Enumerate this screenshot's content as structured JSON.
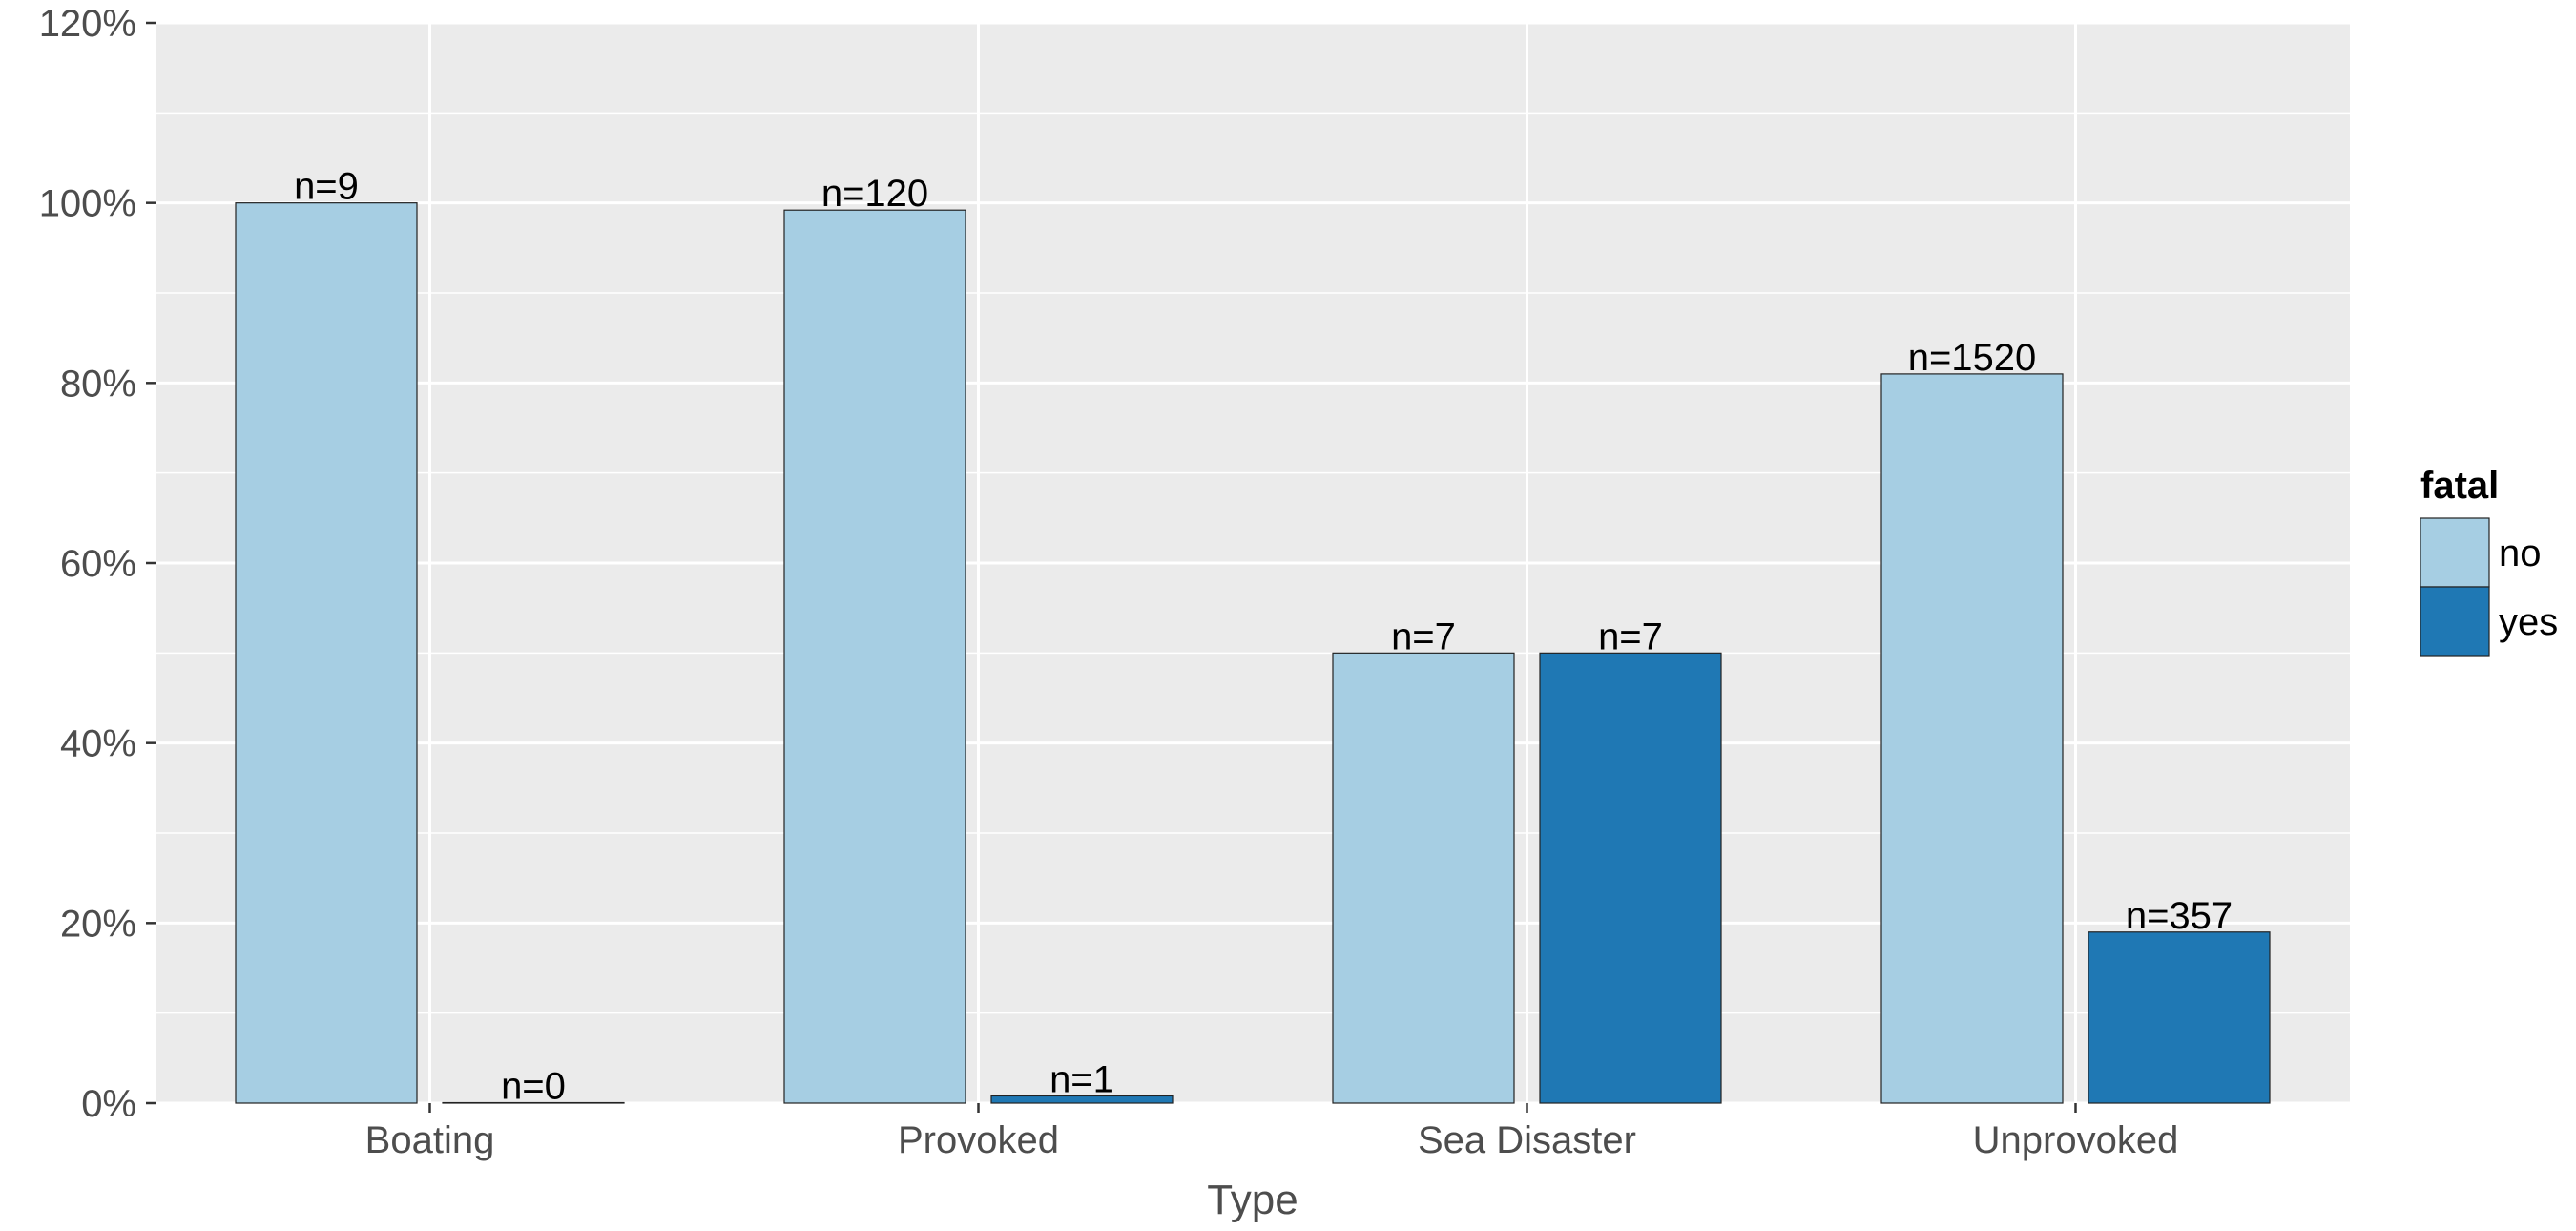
{
  "chart_data": {
    "type": "bar",
    "title": "",
    "xlabel": "Type",
    "ylabel": "",
    "categories": [
      "Boating",
      "Provoked",
      "Sea Disaster",
      "Unprovoked"
    ],
    "ylim": [
      0,
      1.2
    ],
    "yticks": [
      0,
      0.2,
      0.4,
      0.6,
      0.8,
      1.0,
      1.2
    ],
    "ytick_labels": [
      "0%",
      "20%",
      "40%",
      "60%",
      "80%",
      "100%",
      "120%"
    ],
    "grid": true,
    "legend": {
      "title": "fatal",
      "placement": "right"
    },
    "series": [
      {
        "name": "no",
        "color": "#a6cee3",
        "values": [
          1.0,
          0.992,
          0.5,
          0.81
        ],
        "labels": [
          "n=9",
          "n=120",
          "n=7",
          "n=1520"
        ]
      },
      {
        "name": "yes",
        "color": "#1f78b4",
        "values": [
          0.0,
          0.008,
          0.5,
          0.19
        ],
        "labels": [
          "n=0",
          "n=1",
          "n=7",
          "n=357"
        ]
      }
    ]
  }
}
